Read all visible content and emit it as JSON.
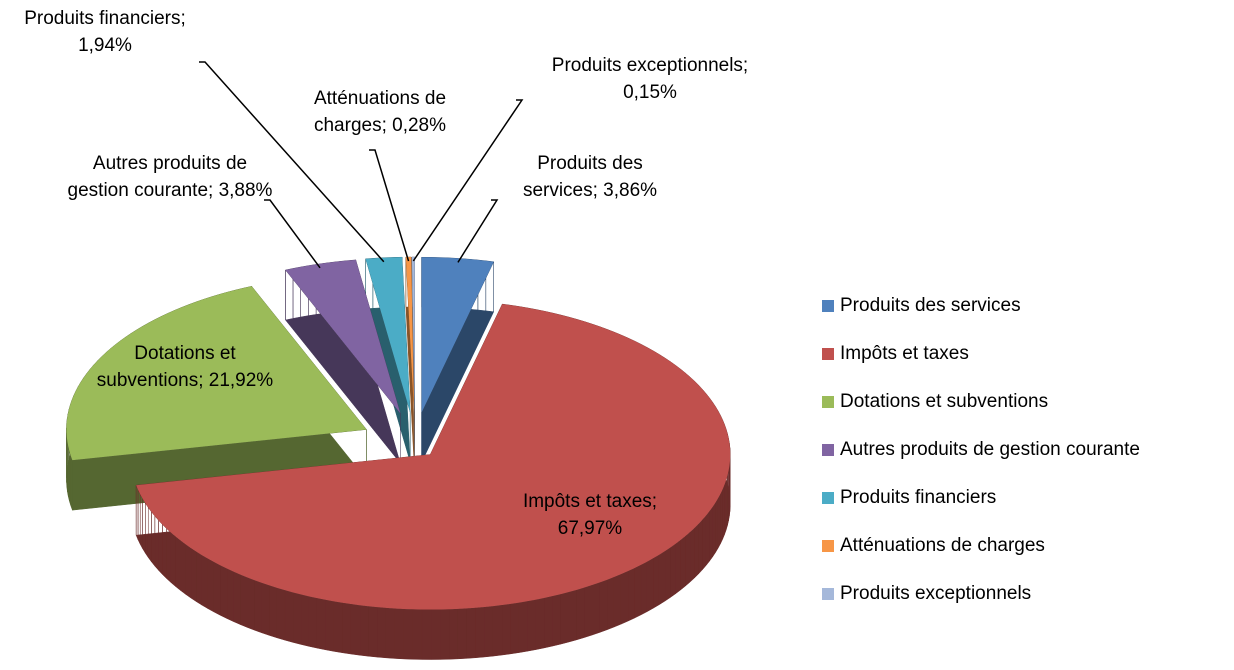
{
  "chart_data": {
    "type": "pie",
    "categories": [
      "Produits des services",
      "Impôts et taxes",
      "Dotations et subventions",
      "Autres produits de gestion courante",
      "Produits financiers",
      "Atténuations de charges",
      "Produits exceptionnels"
    ],
    "values": [
      3.86,
      67.97,
      21.92,
      3.88,
      1.94,
      0.28,
      0.15
    ],
    "value_labels": [
      "Produits des services; 3,86%",
      "Impôts et taxes; 67,97%",
      "Dotations et subventions; 21,92%",
      "Autres produits de gestion courante; 3,88%",
      "Produits financiers; 1,94%",
      "Atténuations de charges; 0,28%",
      "Produits exceptionnels; 0,15%"
    ],
    "colors": [
      "#4f81bd",
      "#c0504d",
      "#9bbb59",
      "#8064a2",
      "#4bacc6",
      "#f79646",
      "#a5b8da"
    ],
    "legend": "right"
  }
}
